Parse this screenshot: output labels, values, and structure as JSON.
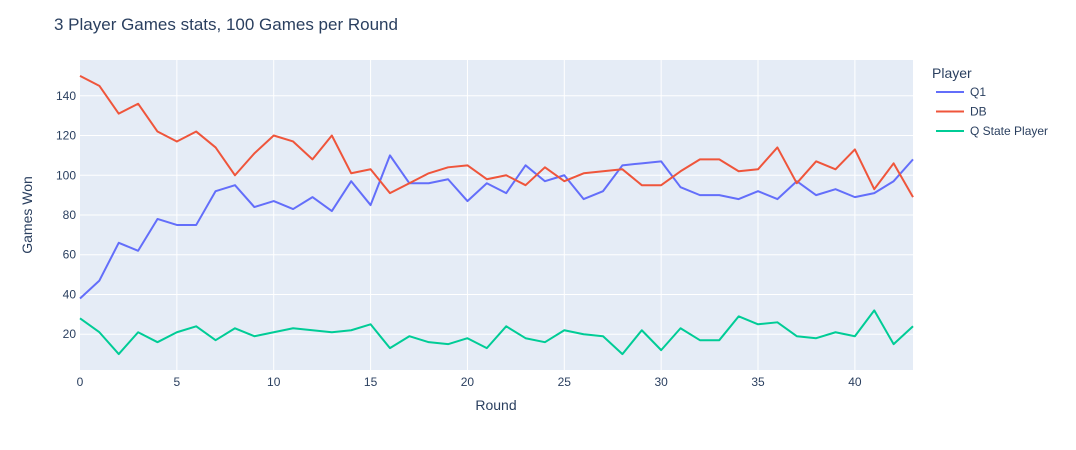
{
  "chart_data": {
    "type": "line",
    "title": "3 Player Games stats, 100 Games per Round",
    "xlabel": "Round",
    "ylabel": "Games Won",
    "xlim": [
      0,
      43
    ],
    "ylim": [
      2,
      158
    ],
    "xticks": [
      0,
      5,
      10,
      15,
      20,
      25,
      30,
      35,
      40
    ],
    "yticks": [
      20,
      40,
      60,
      80,
      100,
      120,
      140
    ],
    "grid": true,
    "legend_title": "Player",
    "legend_position": "right",
    "plot_background": "#e5ecf6",
    "x": [
      0,
      1,
      2,
      3,
      4,
      5,
      6,
      7,
      8,
      9,
      10,
      11,
      12,
      13,
      14,
      15,
      16,
      17,
      18,
      19,
      20,
      21,
      22,
      23,
      24,
      25,
      26,
      27,
      28,
      29,
      30,
      31,
      32,
      33,
      34,
      35,
      36,
      37,
      38,
      39,
      40,
      41,
      42,
      43
    ],
    "series": [
      {
        "name": "Q1",
        "color": "#636efa",
        "values": [
          38,
          47,
          66,
          62,
          78,
          75,
          75,
          92,
          95,
          84,
          87,
          83,
          89,
          82,
          97,
          85,
          110,
          96,
          96,
          98,
          87,
          96,
          91,
          105,
          97,
          100,
          88,
          92,
          105,
          106,
          107,
          94,
          90,
          90,
          88,
          92,
          88,
          97,
          90,
          93,
          89,
          91,
          97,
          108
        ]
      },
      {
        "name": "DB",
        "color": "#ef553b",
        "values": [
          150,
          145,
          131,
          136,
          122,
          117,
          122,
          114,
          100,
          111,
          120,
          117,
          108,
          120,
          101,
          103,
          91,
          96,
          101,
          104,
          105,
          98,
          100,
          95,
          104,
          97,
          101,
          102,
          103,
          95,
          95,
          102,
          108,
          108,
          102,
          103,
          114,
          96,
          107,
          103,
          113,
          93,
          106,
          89
        ]
      },
      {
        "name": "Q State Player",
        "color": "#00cc96",
        "values": [
          28,
          21,
          10,
          21,
          16,
          21,
          24,
          17,
          23,
          19,
          21,
          23,
          22,
          21,
          22,
          25,
          13,
          19,
          16,
          15,
          18,
          13,
          24,
          18,
          16,
          22,
          20,
          19,
          10,
          22,
          12,
          23,
          17,
          17,
          29,
          25,
          26,
          19,
          18,
          21,
          19,
          32,
          15,
          24
        ]
      }
    ]
  }
}
